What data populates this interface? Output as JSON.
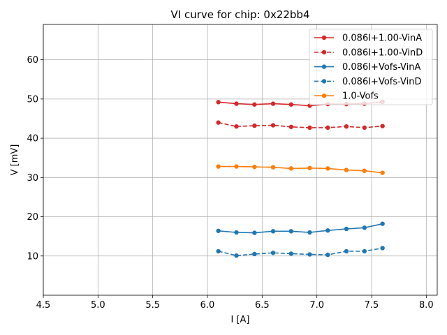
{
  "chart_data": {
    "type": "line",
    "title": "VI curve for chip: 0x22bb4",
    "xlabel": "I [A]",
    "ylabel": "V [mV]",
    "xlim": [
      4.5,
      8.1
    ],
    "ylim": [
      0,
      69
    ],
    "xticks": [
      4.5,
      5.0,
      5.5,
      6.0,
      6.5,
      7.0,
      7.5,
      8.0
    ],
    "xtick_labels": [
      "4.5",
      "5.0",
      "5.5",
      "6.0",
      "6.5",
      "7.0",
      "7.5",
      "8.0"
    ],
    "yticks": [
      10,
      20,
      30,
      40,
      50,
      60
    ],
    "ytick_labels": [
      "10",
      "20",
      "30",
      "40",
      "50",
      "60"
    ],
    "grid": true,
    "legend_position": "top-right",
    "x": [
      6.1,
      6.265,
      6.43,
      6.6,
      6.765,
      6.935,
      7.1,
      7.27,
      7.435,
      7.6
    ],
    "series": [
      {
        "name": "0.086I+1.00-VinA",
        "color": "#d62728",
        "dashed": false,
        "values": [
          49.2,
          48.8,
          48.6,
          48.8,
          48.6,
          48.3,
          48.7,
          48.7,
          48.8,
          49.3
        ]
      },
      {
        "name": "0.086I+1.00-VinD",
        "color": "#d62728",
        "dashed": true,
        "values": [
          44.0,
          43.0,
          43.2,
          43.3,
          42.9,
          42.7,
          42.7,
          43.0,
          42.7,
          43.1
        ]
      },
      {
        "name": "0.086I+Vofs-VinA",
        "color": "#1f77b4",
        "dashed": false,
        "values": [
          16.4,
          16.0,
          15.9,
          16.3,
          16.3,
          16.0,
          16.5,
          16.9,
          17.2,
          18.2
        ]
      },
      {
        "name": "0.086I+Vofs-VinD",
        "color": "#1f77b4",
        "dashed": true,
        "values": [
          11.2,
          10.1,
          10.5,
          10.8,
          10.6,
          10.4,
          10.3,
          11.2,
          11.2,
          12.0
        ]
      },
      {
        "name": "1.0-Vofs",
        "color": "#ff7f0e",
        "dashed": false,
        "values": [
          32.8,
          32.8,
          32.7,
          32.6,
          32.3,
          32.4,
          32.3,
          31.9,
          31.7,
          31.2
        ]
      }
    ]
  }
}
